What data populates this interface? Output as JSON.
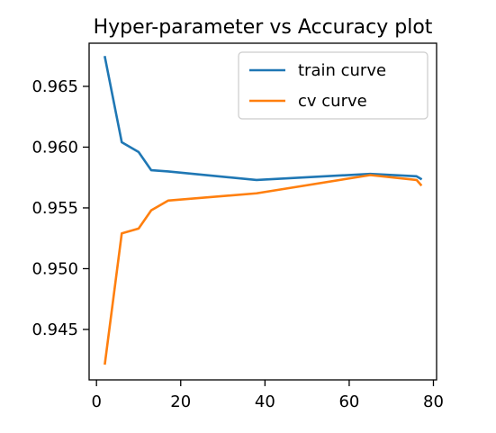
{
  "chart_data": {
    "type": "line",
    "title": "Hyper-parameter vs Accuracy plot",
    "xlabel": "",
    "ylabel": "",
    "xlim": [
      -1.75,
      80.75
    ],
    "ylim": [
      0.94085,
      0.96855
    ],
    "xticks": [
      0,
      20,
      40,
      60,
      80
    ],
    "yticks": [
      0.945,
      0.95,
      0.955,
      0.96,
      0.965
    ],
    "xtick_labels": [
      "0",
      "20",
      "40",
      "60",
      "80"
    ],
    "ytick_labels": [
      "0.945",
      "0.950",
      "0.955",
      "0.960",
      "0.965"
    ],
    "grid": false,
    "legend_position": "top-right",
    "series": [
      {
        "name": "train curve",
        "color": "#1f77b4",
        "x": [
          2,
          6,
          10,
          13,
          17,
          38,
          65,
          76,
          77
        ],
        "y": [
          0.9674,
          0.9604,
          0.9596,
          0.9581,
          0.958,
          0.9573,
          0.9578,
          0.9576,
          0.9574
        ]
      },
      {
        "name": "cv curve",
        "color": "#ff7f0e",
        "x": [
          2,
          6,
          10,
          13,
          17,
          38,
          65,
          76,
          77
        ],
        "y": [
          0.9422,
          0.9529,
          0.9533,
          0.9548,
          0.9556,
          0.9562,
          0.9577,
          0.9573,
          0.9569
        ]
      }
    ]
  }
}
